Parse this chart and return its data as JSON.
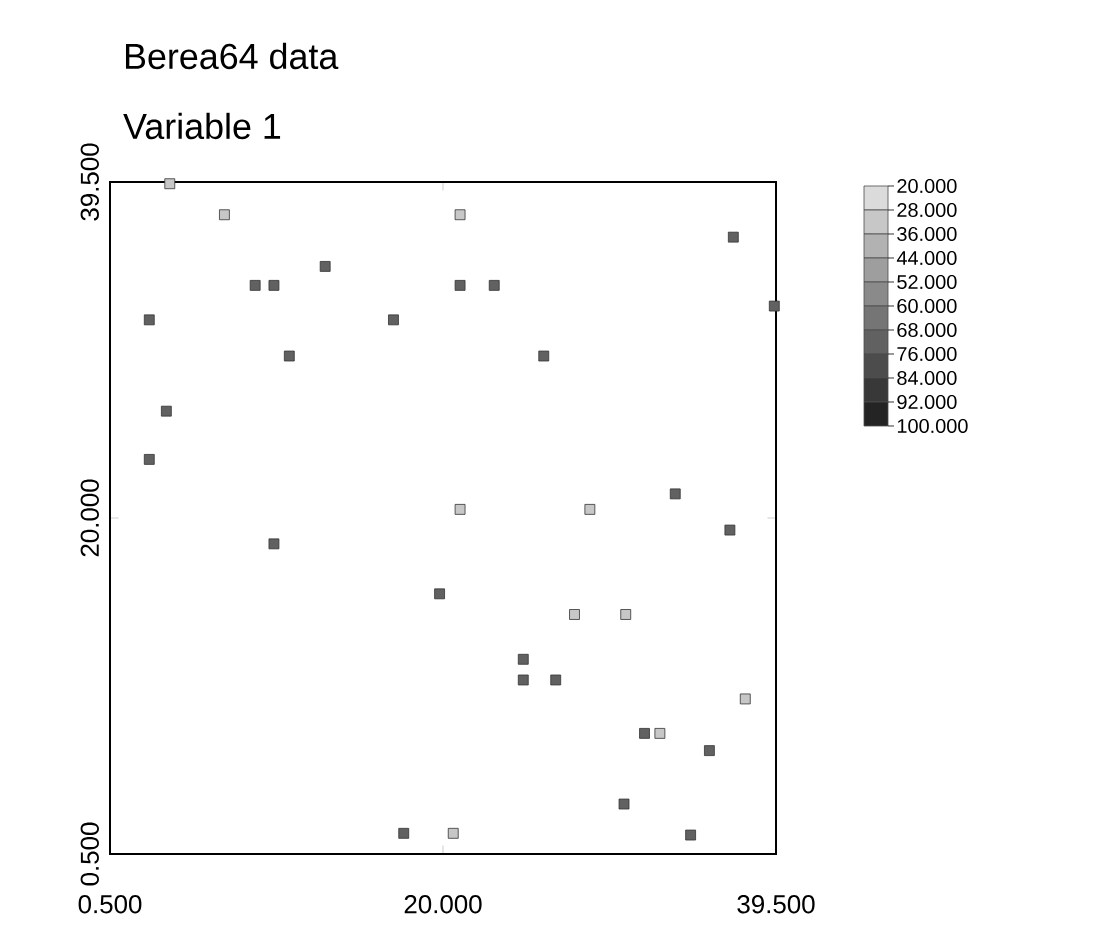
{
  "chart_data": {
    "type": "scatter",
    "title": "Berea64 data",
    "subtitle": "Variable 1",
    "x": [
      4.0,
      7.2,
      21.0,
      37.0,
      13.1,
      9.0,
      10.1,
      21.0,
      23.0,
      39.4,
      2.8,
      17.1,
      11.0,
      25.9,
      3.8,
      2.8,
      21.0,
      28.6,
      33.6,
      36.8,
      10.1,
      19.8,
      27.7,
      30.7,
      24.7,
      24.7,
      26.6,
      37.7,
      31.8,
      32.7,
      35.6,
      30.6,
      17.7,
      20.6,
      34.5
    ],
    "values": [
      39.4,
      37.6,
      37.6,
      36.3,
      34.6,
      33.5,
      33.5,
      33.5,
      33.5,
      32.3,
      31.5,
      31.5,
      29.4,
      29.4,
      26.2,
      23.4,
      20.5,
      20.5,
      21.4,
      19.3,
      18.5,
      15.6,
      14.4,
      14.4,
      11.8,
      10.6,
      10.6,
      9.5,
      7.5,
      7.5,
      6.5,
      3.4,
      1.7,
      1.7,
      1.6
    ],
    "cvalues": [
      32,
      32,
      32,
      72,
      72,
      72,
      72,
      72,
      72,
      72,
      72,
      72,
      72,
      72,
      72,
      72,
      32,
      32,
      72,
      72,
      72,
      72,
      32,
      32,
      72,
      72,
      72,
      32,
      72,
      32,
      72,
      72,
      72,
      32,
      72
    ],
    "xlim": [
      0.5,
      39.5
    ],
    "ylim": [
      0.5,
      39.5
    ],
    "xticks": [
      {
        "value": 0.5,
        "label": "0.500"
      },
      {
        "value": 20,
        "label": "20.000"
      },
      {
        "value": 39.5,
        "label": "39.500"
      }
    ],
    "yticks": [
      {
        "value": 0.5,
        "label": "0.500"
      },
      {
        "value": 20,
        "label": "20.000"
      },
      {
        "value": 39.5,
        "label": "39.500"
      }
    ],
    "clim": [
      20,
      100
    ],
    "cticks": [
      {
        "value": 20,
        "label": "20.000"
      },
      {
        "value": 28,
        "label": "28.000"
      },
      {
        "value": 36,
        "label": "36.000"
      },
      {
        "value": 44,
        "label": "44.000"
      },
      {
        "value": 52,
        "label": "52.000"
      },
      {
        "value": 60,
        "label": "60.000"
      },
      {
        "value": 68,
        "label": "68.000"
      },
      {
        "value": 76,
        "label": "76.000"
      },
      {
        "value": 84,
        "label": "84.000"
      },
      {
        "value": 92,
        "label": "92.000"
      },
      {
        "value": 100,
        "label": "100.000"
      }
    ],
    "marker": "square",
    "grid": false
  }
}
